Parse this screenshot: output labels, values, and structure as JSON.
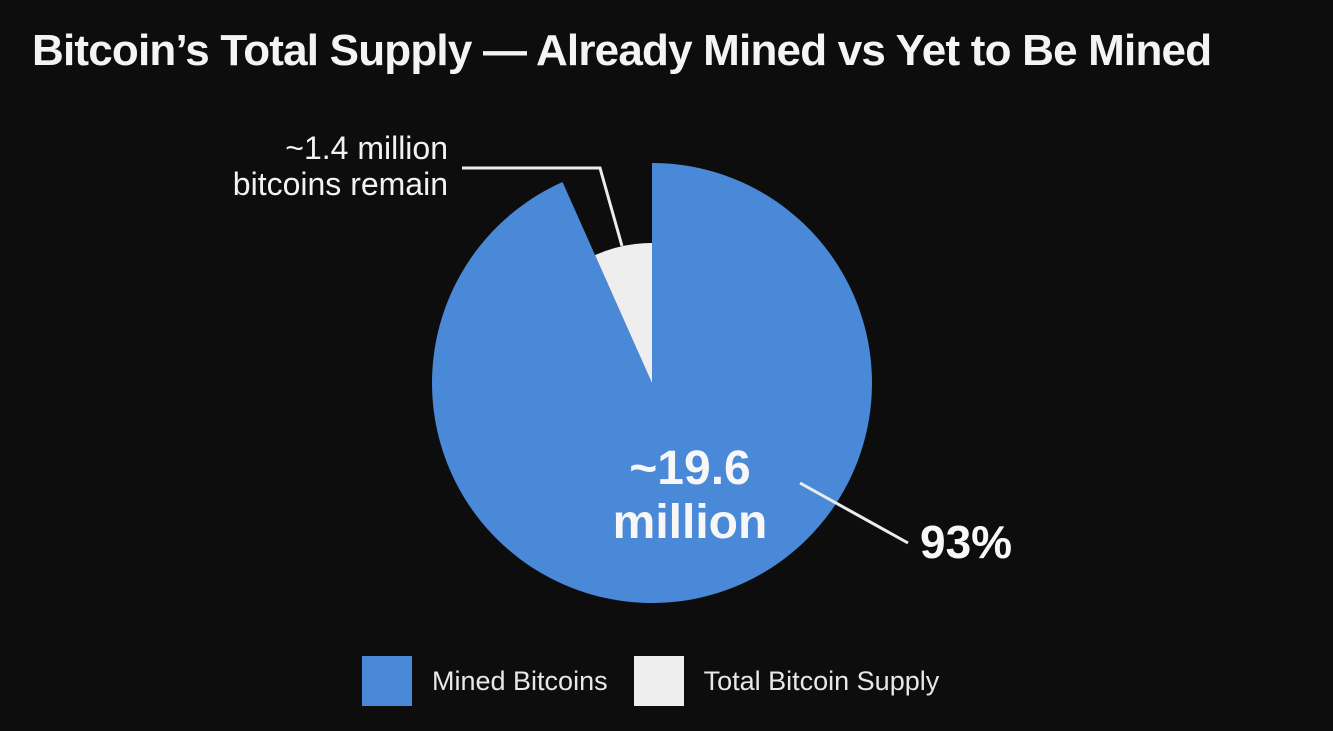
{
  "title": "Bitcoin’s Total Supply — Already Mined vs Yet to Be Mined",
  "colors": {
    "background": "#0d0d0d",
    "mined": "#4a88d8",
    "remaining": "#eeeeee",
    "text": "#f2f2f2"
  },
  "annotations": {
    "remaining_line1": "~1.4 million",
    "remaining_line2": "bitcoins remain",
    "mined_line1": "~19.6",
    "mined_line2": "million",
    "mined_percent": "93%"
  },
  "legend": {
    "items": [
      {
        "label": "Mined Bitcoins",
        "color": "#4a88d8"
      },
      {
        "label": "Total Bitcoin Supply",
        "color": "#eeeeee"
      }
    ]
  },
  "chart_data": {
    "type": "pie",
    "title": "Bitcoin’s Total Supply — Already Mined vs Yet to Be Mined",
    "slices": [
      {
        "label": "Mined Bitcoins",
        "value": 19.6,
        "percent": 93,
        "color": "#4a88d8"
      },
      {
        "label": "Total Bitcoin Supply",
        "value": 1.4,
        "color": "#eeeeee"
      }
    ],
    "units": "million",
    "legend_position": "bottom-center"
  }
}
